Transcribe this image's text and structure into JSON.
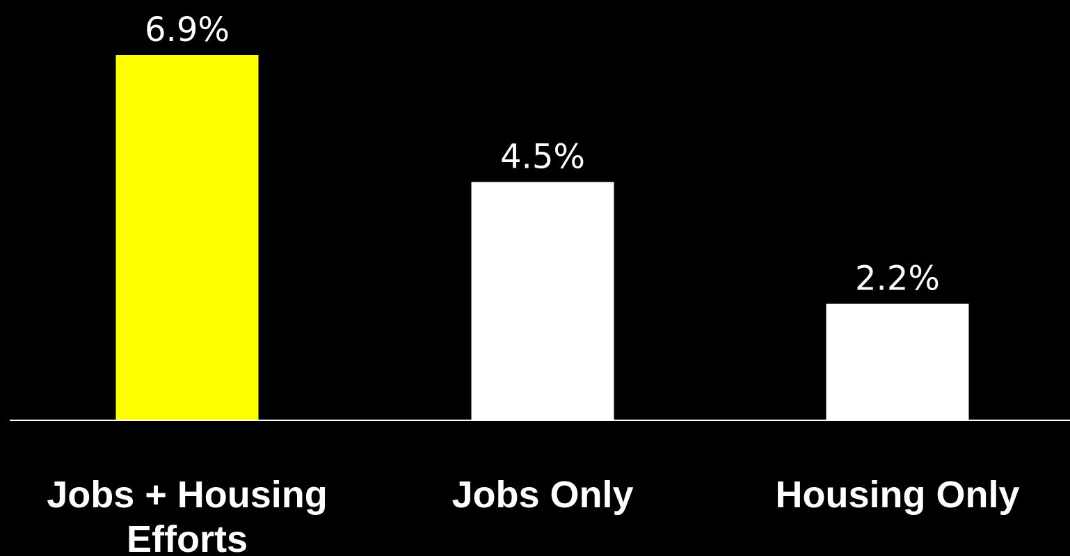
{
  "chart_data": {
    "type": "bar",
    "categories": [
      [
        "Jobs + Housing",
        "Efforts"
      ],
      [
        "Jobs Only"
      ],
      [
        "Housing Only"
      ]
    ],
    "values": [
      6.9,
      4.5,
      2.2
    ],
    "data_labels": [
      "6.9%",
      "4.5%",
      "2.2%"
    ],
    "bar_colors": [
      "#ffff00",
      "#ffffff",
      "#ffffff"
    ],
    "title": "",
    "xlabel": "",
    "ylabel": "",
    "ylim": [
      0,
      6.9
    ],
    "grid": false,
    "legend": "none"
  },
  "colors": {
    "background": "#000000",
    "highlight": "#ffff00",
    "default_bar": "#ffffff",
    "text": "#ffffff",
    "axis": "#ffffff"
  }
}
